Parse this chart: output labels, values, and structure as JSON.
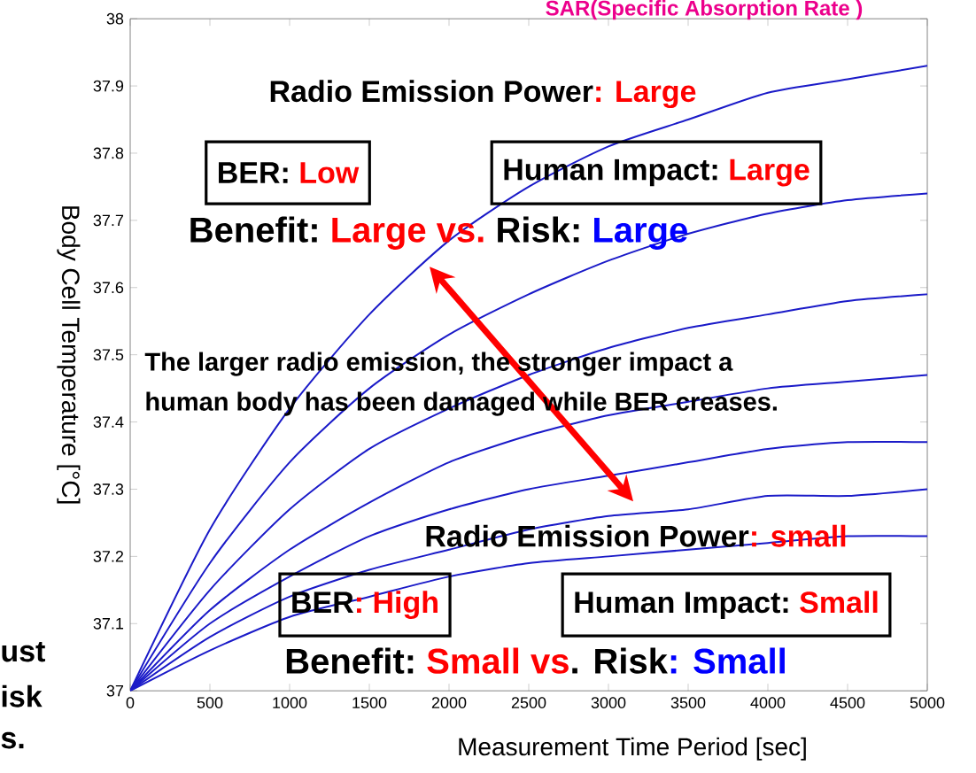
{
  "chart_data": {
    "type": "line",
    "title": "SAR(Specific Absorption Rate )",
    "xlabel": "Measurement Time Period [sec]",
    "ylabel": "Body Cell Temperature [°C]",
    "x": [
      0,
      500,
      1000,
      1500,
      2000,
      2500,
      3000,
      3500,
      4000,
      4500,
      5000
    ],
    "series": [
      {
        "color": "#1a1ac8",
        "values": [
          37.0,
          37.24,
          37.42,
          37.56,
          37.67,
          37.75,
          37.81,
          37.85,
          37.89,
          37.91,
          37.93
        ]
      },
      {
        "color": "#1a1ac8",
        "values": [
          37.0,
          37.19,
          37.34,
          37.45,
          37.53,
          37.59,
          37.64,
          37.68,
          37.71,
          37.73,
          37.74
        ]
      },
      {
        "color": "#1a1ac8",
        "values": [
          37.0,
          37.15,
          37.27,
          37.36,
          37.42,
          37.47,
          37.51,
          37.54,
          37.56,
          37.58,
          37.59
        ]
      },
      {
        "color": "#1a1ac8",
        "values": [
          37.0,
          37.12,
          37.21,
          37.28,
          37.34,
          37.38,
          37.41,
          37.43,
          37.45,
          37.46,
          37.47
        ]
      },
      {
        "color": "#1a1ac8",
        "values": [
          37.0,
          37.1,
          37.17,
          37.23,
          37.27,
          37.3,
          37.32,
          37.34,
          37.36,
          37.37,
          37.37
        ]
      },
      {
        "color": "#1a1ac8",
        "values": [
          37.0,
          37.08,
          37.14,
          37.18,
          37.21,
          37.24,
          37.26,
          37.27,
          37.29,
          37.29,
          37.3
        ]
      },
      {
        "color": "#1a1ac8",
        "values": [
          37.0,
          37.06,
          37.11,
          37.14,
          37.17,
          37.19,
          37.2,
          37.21,
          37.22,
          37.23,
          37.23
        ]
      }
    ],
    "xlim": [
      0,
      5000
    ],
    "ylim": [
      37,
      38
    ],
    "xticks": [
      0,
      500,
      1000,
      1500,
      2000,
      2500,
      3000,
      3500,
      4000,
      4500,
      5000
    ],
    "yticks": [
      37,
      37.1,
      37.2,
      37.3,
      37.4,
      37.5,
      37.6,
      37.7,
      37.8,
      37.9,
      38
    ],
    "marker": "none",
    "line_style": "solid",
    "annotations": [
      "Radio Emission Power",
      ": Large",
      "BER:",
      "Low",
      "Human Impact:",
      "Large",
      "Benefit:",
      "Large vs.",
      "Risk:",
      "Large",
      "The larger radio emission, the stronger impact  a",
      "human body has been damaged while BER creases.",
      "Radio Emission Power",
      ": small",
      "BER",
      ": High",
      "Human Impact:",
      "Small",
      "Benefit:",
      "Small  vs",
      ". Risk",
      ": Small",
      "ust",
      "isk",
      "s."
    ]
  }
}
